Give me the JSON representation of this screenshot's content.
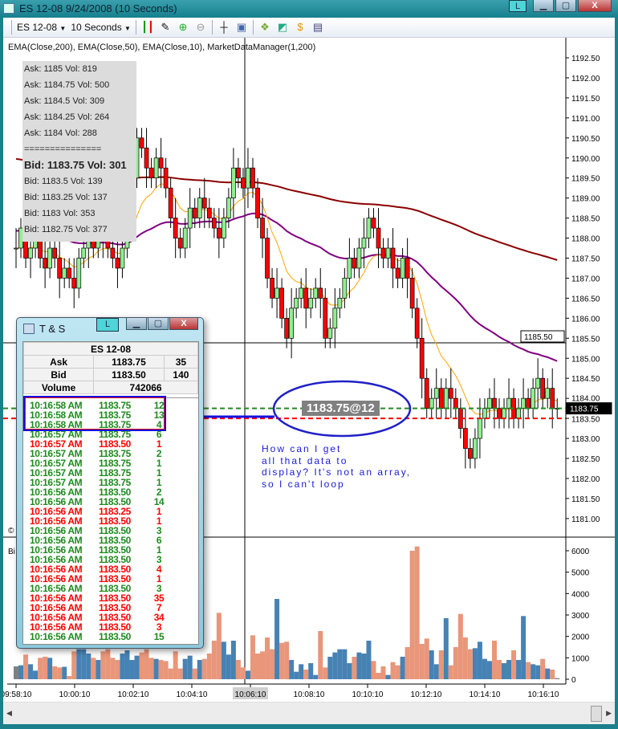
{
  "window": {
    "title": "ES 12-08  9/24/2008 (10 Seconds)",
    "btn_l": "L",
    "btn_min": "▁",
    "btn_max": "▢",
    "btn_close": "X"
  },
  "toolbar": {
    "instrument": "ES 12-08",
    "interval": "10 Seconds",
    "icons": [
      "bar-type-icon",
      "drawing-pencil-icon",
      "zoom-in-icon",
      "zoom-out-icon",
      "crosshair-icon",
      "properties-icon",
      "strategy-icon",
      "indicator-icon",
      "dollar-icon",
      "data-box-icon"
    ]
  },
  "chart": {
    "indicators_label": "EMA(Close,200), EMA(Close,50), EMA(Close,10), MarketDataManager(1,200)",
    "dom_lines": {
      "ask": [
        "Ask: 1185 Vol: 819",
        "Ask: 1184.75 Vol: 500",
        "Ask: 1184.5 Vol: 309",
        "Ask: 1184.25 Vol: 264",
        "Ask: 1184 Vol: 288"
      ],
      "separator": "===============",
      "best_bid": "Bid: 1183.75 Vol: 301",
      "bid": [
        "Bid: 1183.5 Vol: 139",
        "Bid: 1183.25 Vol: 137",
        "Bid: 1183 Vol: 353",
        "Bid: 1182.75 Vol: 377"
      ]
    },
    "annotation_price": "1183.75@12",
    "annotation_note": [
      "How can I get",
      "all that data to",
      "display? It's not an array,",
      "so I can't loop"
    ],
    "price_ticks": [
      "1192.50",
      "1192.00",
      "1191.50",
      "1191.00",
      "1190.50",
      "1190.00",
      "1189.50",
      "1189.00",
      "1188.50",
      "1188.00",
      "1187.50",
      "1187.00",
      "1186.50",
      "1186.00",
      "1185.50",
      "1185.00",
      "1184.50",
      "1184.00",
      "1183.50",
      "1183.00",
      "1182.50",
      "1182.00",
      "1181.50",
      "1181.00"
    ],
    "crosshair_price": "1185.50",
    "last_price": "1183.75",
    "ask_line": 1183.75,
    "bid_line": 1183.5,
    "volume_ticks": [
      "6000",
      "5000",
      "4000",
      "3000",
      "2000",
      "1000",
      "0"
    ],
    "time_ticks": [
      "09:58:10",
      "10:00:10",
      "10:02:10",
      "10:04:10",
      "10:06:10",
      "10:08:10",
      "10:10:10",
      "10:12:10",
      "10:14:10",
      "10:16:10"
    ],
    "crosshair_time": "10:06:10",
    "copyright_mark": "©",
    "volume_panel_label": "Bi",
    "colors": {
      "up_candle": "#90ee90",
      "down_candle": "#ff0000",
      "ema200": "#8b0000",
      "ema50": "#800080",
      "ema10": "#ffa500",
      "vol_up": "#4682b4",
      "vol_down": "#e9967a",
      "vol_flat": "#808080",
      "ask_line": "#228b22",
      "bid_line": "#ff0000"
    },
    "closes": [
      1187.75,
      1188.25,
      1187.5,
      1187.75,
      1188,
      1187.5,
      1187.25,
      1187.75,
      1187.5,
      1187,
      1187.25,
      1187,
      1186.75,
      1187.5,
      1187.75,
      1188,
      1187.75,
      1188.25,
      1188,
      1187.75,
      1187.5,
      1187.25,
      1187.75,
      1188.5,
      1189.5,
      1190.5,
      1190.25,
      1189.75,
      1189.5,
      1190,
      1189.75,
      1189.25,
      1188.5,
      1188,
      1187.75,
      1188.25,
      1188.75,
      1188.5,
      1189,
      1188.75,
      1188.5,
      1188.25,
      1188,
      1188.5,
      1189,
      1189.75,
      1189.5,
      1189.25,
      1189.75,
      1189.25,
      1188.5,
      1188,
      1187,
      1186.5,
      1186.75,
      1186,
      1185.5,
      1186.25,
      1186.5,
      1186.75,
      1186.25,
      1186.5,
      1186.75,
      1186.5,
      1185.5,
      1185.75,
      1186.25,
      1186.5,
      1187,
      1187.5,
      1187.25,
      1187.75,
      1188,
      1188.5,
      1188.25,
      1187.75,
      1187.5,
      1187.75,
      1187.25,
      1187,
      1187.5,
      1187,
      1186.25,
      1185.5,
      1184.5,
      1183.75,
      1184,
      1184.25,
      1183.75,
      1184.25,
      1184,
      1183.75,
      1183.25,
      1182.75,
      1182.5,
      1183,
      1183.5,
      1183.75,
      1184,
      1183.75,
      1183.5,
      1183.75,
      1184,
      1183.5,
      1183.75,
      1184,
      1183.75,
      1184.25,
      1184.5,
      1184,
      1184.25,
      1183.75,
      1183.75
    ],
    "volumes": [
      600,
      650,
      1150,
      700,
      400,
      1000,
      1050,
      1000,
      600,
      550,
      580,
      150,
      1300,
      1400,
      1400,
      1200,
      1000,
      900,
      1300,
      1400,
      1000,
      900,
      1200,
      1350,
      900,
      1100,
      1250,
      1400,
      1000,
      950,
      900,
      850,
      500,
      1300,
      500,
      950,
      1100,
      500,
      900,
      950,
      1200,
      1800,
      3100,
      1750,
      1150,
      1800,
      900,
      550,
      400,
      2050,
      1200,
      1300,
      1950,
      1400,
      3750,
      1700,
      1750,
      900,
      350,
      700,
      450,
      750,
      200,
      2250,
      550,
      1050,
      1250,
      1400,
      1400,
      750,
      1050,
      1250,
      1200,
      1800,
      850,
      300,
      600,
      200,
      800,
      650,
      1050,
      1500,
      6000,
      6200,
      1650,
      1900,
      1350,
      700,
      1350,
      2850,
      650,
      1500,
      3050,
      1950,
      1400,
      1450,
      1750,
      950,
      850,
      1800,
      900,
      750,
      900,
      1350,
      900,
      2950,
      800,
      700,
      650,
      950,
      500,
      450,
      50
    ]
  },
  "ts": {
    "title": "T & S",
    "btn_l": "L",
    "instrument": "ES 12-08",
    "ask_label": "Ask",
    "ask_price": "1183.75",
    "ask_size": "35",
    "bid_label": "Bid",
    "bid_price": "1183.50",
    "bid_size": "140",
    "volume_label": "Volume",
    "volume": "742066",
    "trades": [
      [
        "10:16:58 AM",
        "1183.75",
        "12",
        "g"
      ],
      [
        "10:16:58 AM",
        "1183.75",
        "13",
        "g"
      ],
      [
        "10:16:58 AM",
        "1183.75",
        "4",
        "g"
      ],
      [
        "10:16:57 AM",
        "1183.75",
        "6",
        "g"
      ],
      [
        "10:16:57 AM",
        "1183.50",
        "1",
        "r"
      ],
      [
        "10:16:57 AM",
        "1183.75",
        "2",
        "g"
      ],
      [
        "10:16:57 AM",
        "1183.75",
        "1",
        "g"
      ],
      [
        "10:16:57 AM",
        "1183.75",
        "1",
        "g"
      ],
      [
        "10:16:57 AM",
        "1183.75",
        "1",
        "g"
      ],
      [
        "10:16:56 AM",
        "1183.50",
        "2",
        "g"
      ],
      [
        "10:16:56 AM",
        "1183.50",
        "14",
        "g"
      ],
      [
        "10:16:56 AM",
        "1183.25",
        "1",
        "r"
      ],
      [
        "10:16:56 AM",
        "1183.50",
        "1",
        "r"
      ],
      [
        "10:16:56 AM",
        "1183.50",
        "3",
        "g"
      ],
      [
        "10:16:56 AM",
        "1183.50",
        "6",
        "g"
      ],
      [
        "10:16:56 AM",
        "1183.50",
        "1",
        "g"
      ],
      [
        "10:16:56 AM",
        "1183.50",
        "3",
        "g"
      ],
      [
        "10:16:56 AM",
        "1183.50",
        "4",
        "r"
      ],
      [
        "10:16:56 AM",
        "1183.50",
        "1",
        "r"
      ],
      [
        "10:16:56 AM",
        "1183.50",
        "3",
        "g"
      ],
      [
        "10:16:56 AM",
        "1183.50",
        "35",
        "r"
      ],
      [
        "10:16:56 AM",
        "1183.50",
        "7",
        "r"
      ],
      [
        "10:16:56 AM",
        "1183.50",
        "34",
        "r"
      ],
      [
        "10:16:56 AM",
        "1183.50",
        "3",
        "r"
      ],
      [
        "10:16:56 AM",
        "1183.50",
        "15",
        "g"
      ]
    ]
  }
}
